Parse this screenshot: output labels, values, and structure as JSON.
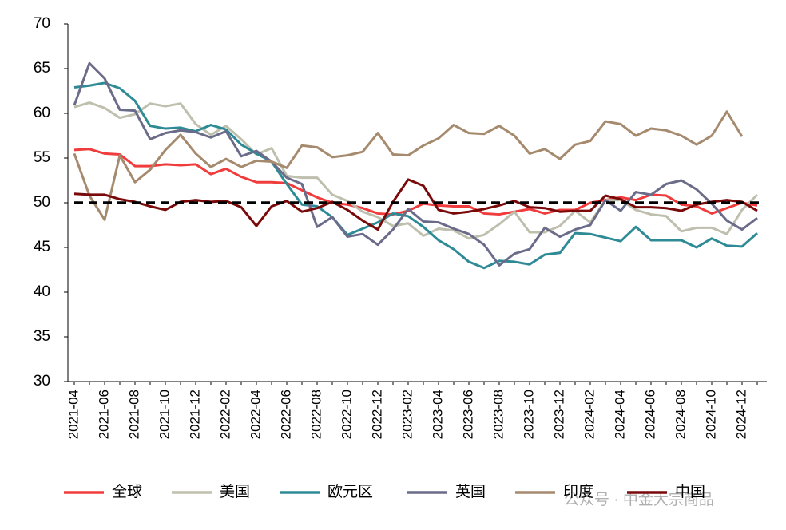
{
  "chart_data": {
    "type": "line",
    "categories": [
      "2021-04",
      null,
      "2021-06",
      null,
      "2021-08",
      null,
      "2021-10",
      null,
      "2021-12",
      null,
      "2022-02",
      null,
      "2022-04",
      null,
      "2022-06",
      null,
      "2022-08",
      null,
      "2022-10",
      null,
      "2022-12",
      null,
      "2023-02",
      null,
      "2023-04",
      null,
      "2023-06",
      null,
      "2023-08",
      null,
      "2023-10",
      null,
      "2023-12",
      null,
      "2024-02",
      null,
      "2024-04",
      null,
      "2024-06",
      null,
      "2024-08",
      null,
      "2024-10",
      null,
      "2024-12",
      null
    ],
    "series": [
      {
        "name": "全球",
        "color": "#f03c3c",
        "values": [
          55.9,
          56.0,
          55.5,
          55.4,
          54.1,
          54.1,
          54.3,
          54.2,
          54.3,
          53.2,
          53.8,
          52.9,
          52.3,
          52.3,
          52.2,
          51.4,
          50.6,
          50.0,
          49.8,
          49.4,
          48.8,
          48.7,
          49.1,
          49.9,
          49.7,
          49.6,
          49.6,
          48.8,
          48.7,
          49.0,
          49.3,
          48.8,
          49.2,
          49.2,
          50.0,
          50.3,
          50.6,
          50.3,
          50.9,
          50.8,
          49.8,
          49.6,
          48.8,
          49.4,
          50.0,
          49.7
        ]
      },
      {
        "name": "美国",
        "color": "#bfbfae",
        "values": [
          60.7,
          61.2,
          60.6,
          59.5,
          59.9,
          61.1,
          60.8,
          61.1,
          58.8,
          57.6,
          58.6,
          57.1,
          55.4,
          56.1,
          53.0,
          52.8,
          52.8,
          50.9,
          50.2,
          49.0,
          48.4,
          47.4,
          47.7,
          46.3,
          47.1,
          46.9,
          46.0,
          46.4,
          47.6,
          49.0,
          46.7,
          46.7,
          47.4,
          49.1,
          47.8,
          50.3,
          50.3,
          49.2,
          48.7,
          48.5,
          46.8,
          47.2,
          47.2,
          46.5,
          49.2,
          50.9
        ]
      },
      {
        "name": "欧元区",
        "color": "#2e8b96",
        "values": [
          62.9,
          63.1,
          63.4,
          62.8,
          61.4,
          58.6,
          58.3,
          58.4,
          58.0,
          58.7,
          58.2,
          56.5,
          55.5,
          54.6,
          52.1,
          49.8,
          49.6,
          48.4,
          46.4,
          47.1,
          47.8,
          48.8,
          48.5,
          47.3,
          45.8,
          44.8,
          43.4,
          42.7,
          43.5,
          43.4,
          43.1,
          44.2,
          44.4,
          46.6,
          46.5,
          46.1,
          45.7,
          47.3,
          45.8,
          45.8,
          45.8,
          45.0,
          46.0,
          45.2,
          45.1,
          46.6
        ]
      },
      {
        "name": "英国",
        "color": "#6b6b8a",
        "values": [
          60.9,
          65.6,
          63.9,
          60.4,
          60.3,
          57.1,
          57.8,
          58.1,
          57.9,
          57.3,
          58.0,
          55.2,
          55.8,
          54.6,
          52.8,
          52.1,
          47.3,
          48.4,
          46.2,
          46.5,
          45.3,
          47.0,
          49.3,
          47.9,
          47.8,
          47.1,
          46.5,
          45.3,
          43.0,
          44.3,
          44.8,
          47.2,
          46.2,
          47.0,
          47.5,
          50.3,
          49.1,
          51.2,
          50.9,
          52.1,
          52.5,
          51.5,
          49.9,
          48.0,
          47.0,
          48.3
        ]
      },
      {
        "name": "印度",
        "color": "#a68a6e",
        "values": [
          55.5,
          50.8,
          48.1,
          55.3,
          52.3,
          53.7,
          55.9,
          57.6,
          55.5,
          54.0,
          54.9,
          54.0,
          54.7,
          54.6,
          53.9,
          56.4,
          56.2,
          55.1,
          55.3,
          55.7,
          57.8,
          55.4,
          55.3,
          56.4,
          57.2,
          58.7,
          57.8,
          57.7,
          58.6,
          57.5,
          55.5,
          56.0,
          54.9,
          56.5,
          56.9,
          59.1,
          58.8,
          57.5,
          58.3,
          58.1,
          57.5,
          56.5,
          57.5,
          60.2,
          57.4,
          null
        ]
      },
      {
        "name": "中国",
        "color": "#7a0a0a",
        "values": [
          51.0,
          50.9,
          50.9,
          50.4,
          50.1,
          49.6,
          49.2,
          50.1,
          50.3,
          50.1,
          50.2,
          49.5,
          47.4,
          49.6,
          50.2,
          49.0,
          49.4,
          50.1,
          49.2,
          48.0,
          47.0,
          50.1,
          52.6,
          51.9,
          49.2,
          48.8,
          49.0,
          49.3,
          49.7,
          50.2,
          49.5,
          49.4,
          49.0,
          49.1,
          49.1,
          50.8,
          50.4,
          49.5,
          49.5,
          49.4,
          49.1,
          49.8,
          50.1,
          50.3,
          50.1,
          49.1
        ]
      }
    ],
    "reference_line": 50,
    "ylim": [
      30,
      70
    ],
    "yticks": [
      30,
      35,
      40,
      45,
      50,
      55,
      60,
      65,
      70
    ],
    "grid": false,
    "legend": "bottom",
    "watermark": "公众号 · 中金大宗商品"
  }
}
